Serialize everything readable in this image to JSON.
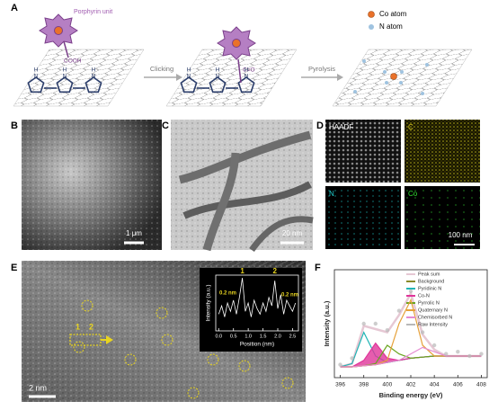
{
  "panel_a": {
    "label": "A",
    "porphyrin": "Porphyrin unit",
    "cooh": "COOH",
    "carbonyl": "C=O",
    "step1": "Clicking",
    "step2": "Pyrolysis",
    "legend": [
      "Co atom",
      "N atom"
    ],
    "n": "N",
    "h": "H"
  },
  "panel_b": {
    "label": "B",
    "scale": "1 μm"
  },
  "panel_c": {
    "label": "C",
    "scale": "20 nm"
  },
  "panel_d": {
    "label": "D",
    "maps": [
      "HAADF",
      "C",
      "N",
      "Co"
    ],
    "scale": "100 nm"
  },
  "panel_e": {
    "label": "E",
    "scale": "2 nm",
    "markers": [
      "1",
      "2"
    ],
    "inset": {
      "type": "line",
      "xlabel": "Position (nm)",
      "ylabel": "Intensity (a.u.)",
      "peaks": [
        "1",
        "2"
      ],
      "spacing": [
        "0.2 nm",
        "0.2 nm"
      ],
      "color": "#ffffff",
      "x": [
        0,
        0.1,
        0.2,
        0.3,
        0.4,
        0.5,
        0.6,
        0.7,
        0.8,
        0.9,
        1,
        1.1,
        1.2,
        1.3,
        1.4,
        1.5,
        1.6,
        1.7,
        1.8,
        1.9,
        2,
        2.1,
        2.2,
        2.3,
        2.4,
        2.5,
        2.6
      ],
      "values": [
        0.3,
        0.45,
        0.25,
        0.5,
        0.35,
        0.55,
        0.3,
        0.6,
        0.95,
        0.35,
        0.5,
        0.25,
        0.55,
        0.4,
        0.3,
        0.5,
        0.35,
        0.6,
        0.45,
        0.9,
        0.4,
        0.65,
        0.3,
        0.55,
        0.45,
        0.35,
        0.5
      ],
      "xlim": [
        -0.1,
        2.7
      ],
      "ylim": [
        0,
        1
      ],
      "xticks": [
        {
          "value": 0,
          "label": "0.0"
        },
        0.5,
        {
          "value": 1,
          "label": "1.0"
        },
        1.5,
        {
          "value": 2,
          "label": "2.0"
        },
        2.5
      ]
    }
  },
  "panel_f": {
    "label": "F",
    "type": "line",
    "xlabel": "Binding energy (eV)",
    "ylabel": "Intensity (a.u.)",
    "x": [
      396,
      397,
      398,
      399,
      400,
      401,
      402,
      403,
      404,
      405,
      406,
      407,
      408
    ],
    "xlim": [
      395.5,
      408.5
    ],
    "ylim": [
      0,
      1
    ],
    "xticks": [
      396,
      398,
      400,
      402,
      404,
      406,
      408
    ],
    "series": [
      {
        "name": "Peak sum",
        "color": "#e6c8d4",
        "values": [
          0.1,
          0.13,
          0.48,
          0.45,
          0.42,
          0.58,
          0.78,
          0.4,
          0.26,
          0.2,
          0.2,
          0.2,
          0.2
        ]
      },
      {
        "name": "Background",
        "color": "#8a8a2a",
        "values": [
          0.1,
          0.1,
          0.11,
          0.12,
          0.14,
          0.16,
          0.18,
          0.19,
          0.2,
          0.2,
          0.2,
          0.2,
          0.2
        ]
      },
      {
        "name": "Pyridinic N",
        "color": "#1fb5b5",
        "values": [
          0.1,
          0.13,
          0.42,
          0.2,
          0.14,
          0.16,
          0.18,
          0.19,
          0.2,
          0.2,
          0.2,
          0.2,
          0.2
        ]
      },
      {
        "name": "Co-N",
        "color": "#e0359a",
        "values": [
          0.1,
          0.1,
          0.16,
          0.32,
          0.18,
          0.16,
          0.18,
          0.19,
          0.2,
          0.2,
          0.2,
          0.2,
          0.2
        ]
      },
      {
        "name": "Pyrrolic N",
        "color": "#6aa51e",
        "values": [
          0.1,
          0.1,
          0.11,
          0.13,
          0.3,
          0.22,
          0.18,
          0.19,
          0.2,
          0.2,
          0.2,
          0.2,
          0.2
        ]
      },
      {
        "name": "Quaternary N",
        "color": "#e6a13a",
        "values": [
          0.1,
          0.1,
          0.11,
          0.12,
          0.16,
          0.5,
          0.72,
          0.3,
          0.2,
          0.2,
          0.2,
          0.2,
          0.2
        ]
      },
      {
        "name": "Chemisorbed N",
        "color": "#e58ad0",
        "values": [
          0.1,
          0.1,
          0.11,
          0.12,
          0.14,
          0.16,
          0.22,
          0.28,
          0.24,
          0.2,
          0.2,
          0.2,
          0.2
        ]
      },
      {
        "name": "Raw Intensity",
        "color": "#b8b8b8",
        "values": [
          0.12,
          0.18,
          0.5,
          0.5,
          0.44,
          0.62,
          0.8,
          0.42,
          0.3,
          0.22,
          0.24,
          0.2,
          0.22
        ]
      }
    ]
  }
}
